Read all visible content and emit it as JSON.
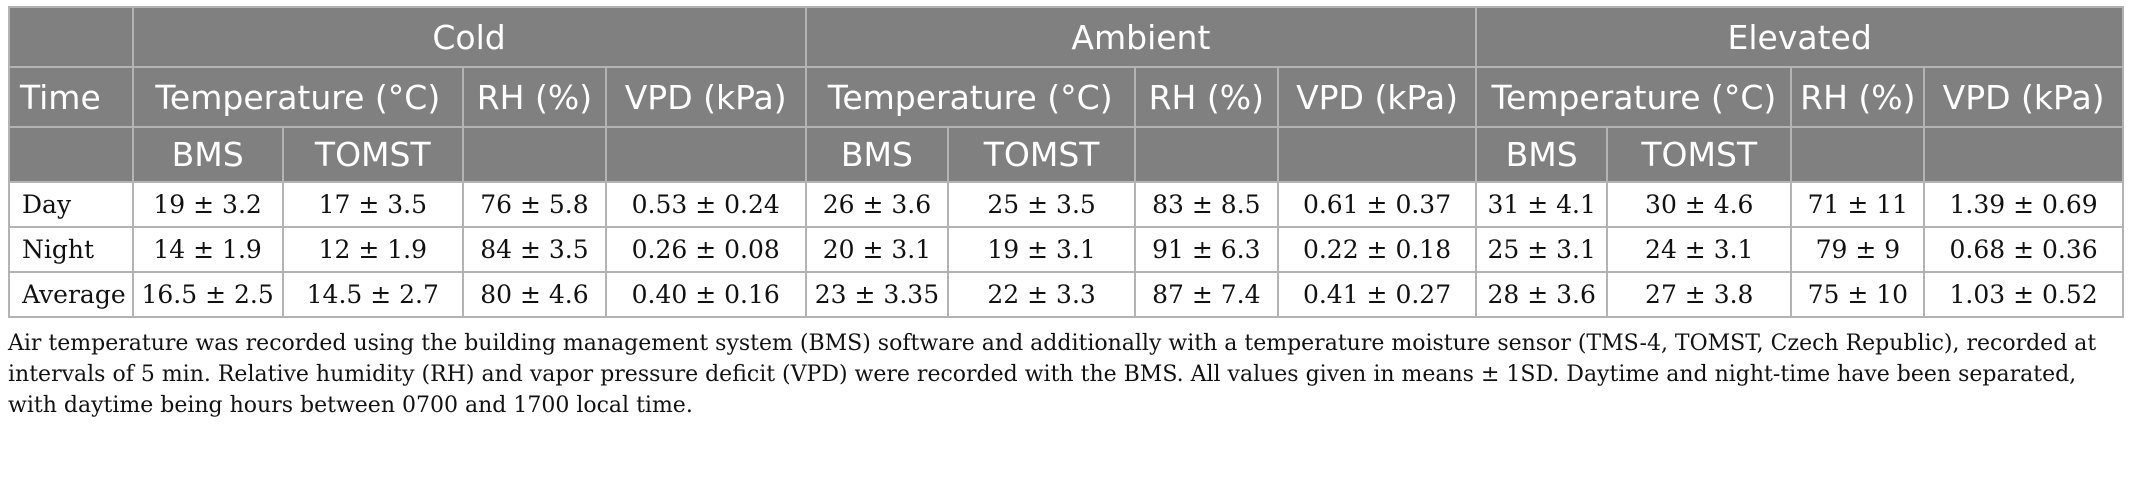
{
  "table": {
    "groups": [
      "Cold",
      "Ambient",
      "Elevated"
    ],
    "time_label": "Time",
    "measure_labels": [
      "Temperature (°C)",
      "RH (%)",
      "VPD (kPa)"
    ],
    "sensor_labels": [
      "BMS",
      "TOMST"
    ],
    "rows": [
      {
        "label": "Day",
        "cells": [
          "19 ± 3.2",
          "17 ± 3.5",
          "76 ± 5.8",
          "0.53 ± 0.24",
          "26 ± 3.6",
          "25 ± 3.5",
          "83 ± 8.5",
          "0.61 ± 0.37",
          "31 ± 4.1",
          "30 ± 4.6",
          "71 ± 11",
          "1.39 ± 0.69"
        ]
      },
      {
        "label": "Night",
        "cells": [
          "14 ± 1.9",
          "12 ± 1.9",
          "84 ± 3.5",
          "0.26 ± 0.08",
          "20 ± 3.1",
          "19 ± 3.1",
          "91 ± 6.3",
          "0.22 ± 0.18",
          "25 ± 3.1",
          "24 ± 3.1",
          "79 ± 9",
          "0.68 ± 0.36"
        ]
      },
      {
        "label": "Average",
        "cells": [
          "16.5 ± 2.5",
          "14.5 ± 2.7",
          "80 ± 4.6",
          "0.40 ± 0.16",
          "23 ± 3.35",
          "22 ± 3.3",
          "87 ± 7.4",
          "0.41 ± 0.27",
          "28 ± 3.6",
          "27 ± 3.8",
          "75 ± 10",
          "1.03 ± 0.52"
        ]
      }
    ]
  },
  "footnote": "Air temperature was recorded using the building management system (BMS) software and additionally with a temperature moisture sensor (TMS-4, TOMST, Czech Republic), recorded at intervals of 5 min. Relative humidity (RH) and vapor pressure deficit (VPD) were recorded with the BMS. All values given in means ± 1SD. Daytime and night-time have been separated, with daytime being hours between 0700 and 1700 local time."
}
